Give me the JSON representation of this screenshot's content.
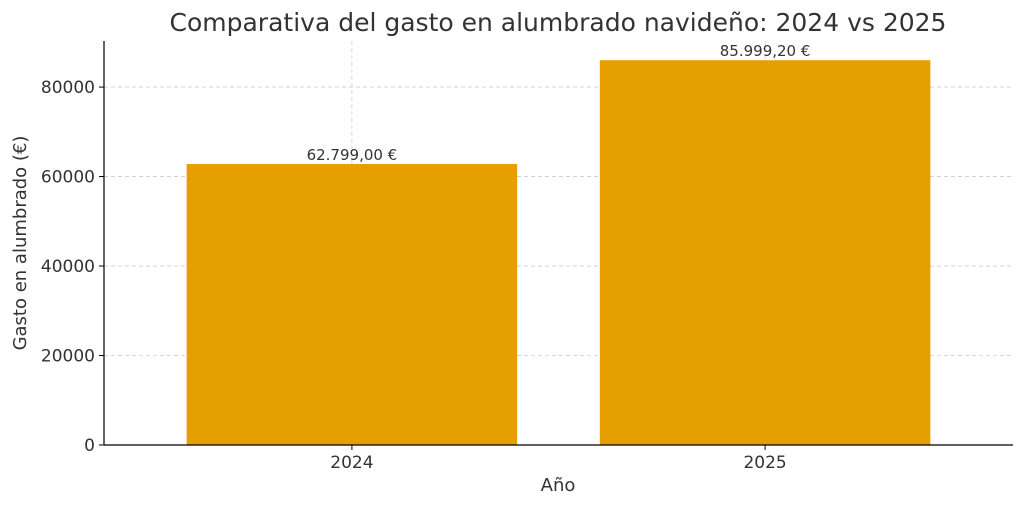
{
  "chart_data": {
    "type": "bar",
    "title": "Comparativa del gasto en alumbrado navideño: 2024 vs 2025",
    "xlabel": "Año",
    "ylabel": "Gasto en alumbrado (€)",
    "categories": [
      "2024",
      "2025"
    ],
    "values": [
      62799.0,
      85999.2
    ],
    "value_labels": [
      "62.799,00 €",
      "85.999,20 €"
    ],
    "ylim": [
      0,
      90299.16
    ],
    "yticks": [
      0,
      20000,
      40000,
      60000,
      80000
    ],
    "ytick_labels": [
      "0",
      "20000",
      "40000",
      "60000",
      "80000"
    ],
    "grid": true,
    "colors": {
      "bar": "#E69F00",
      "grid": "#cccccc",
      "axis": "#000000",
      "text": "#333333"
    }
  }
}
